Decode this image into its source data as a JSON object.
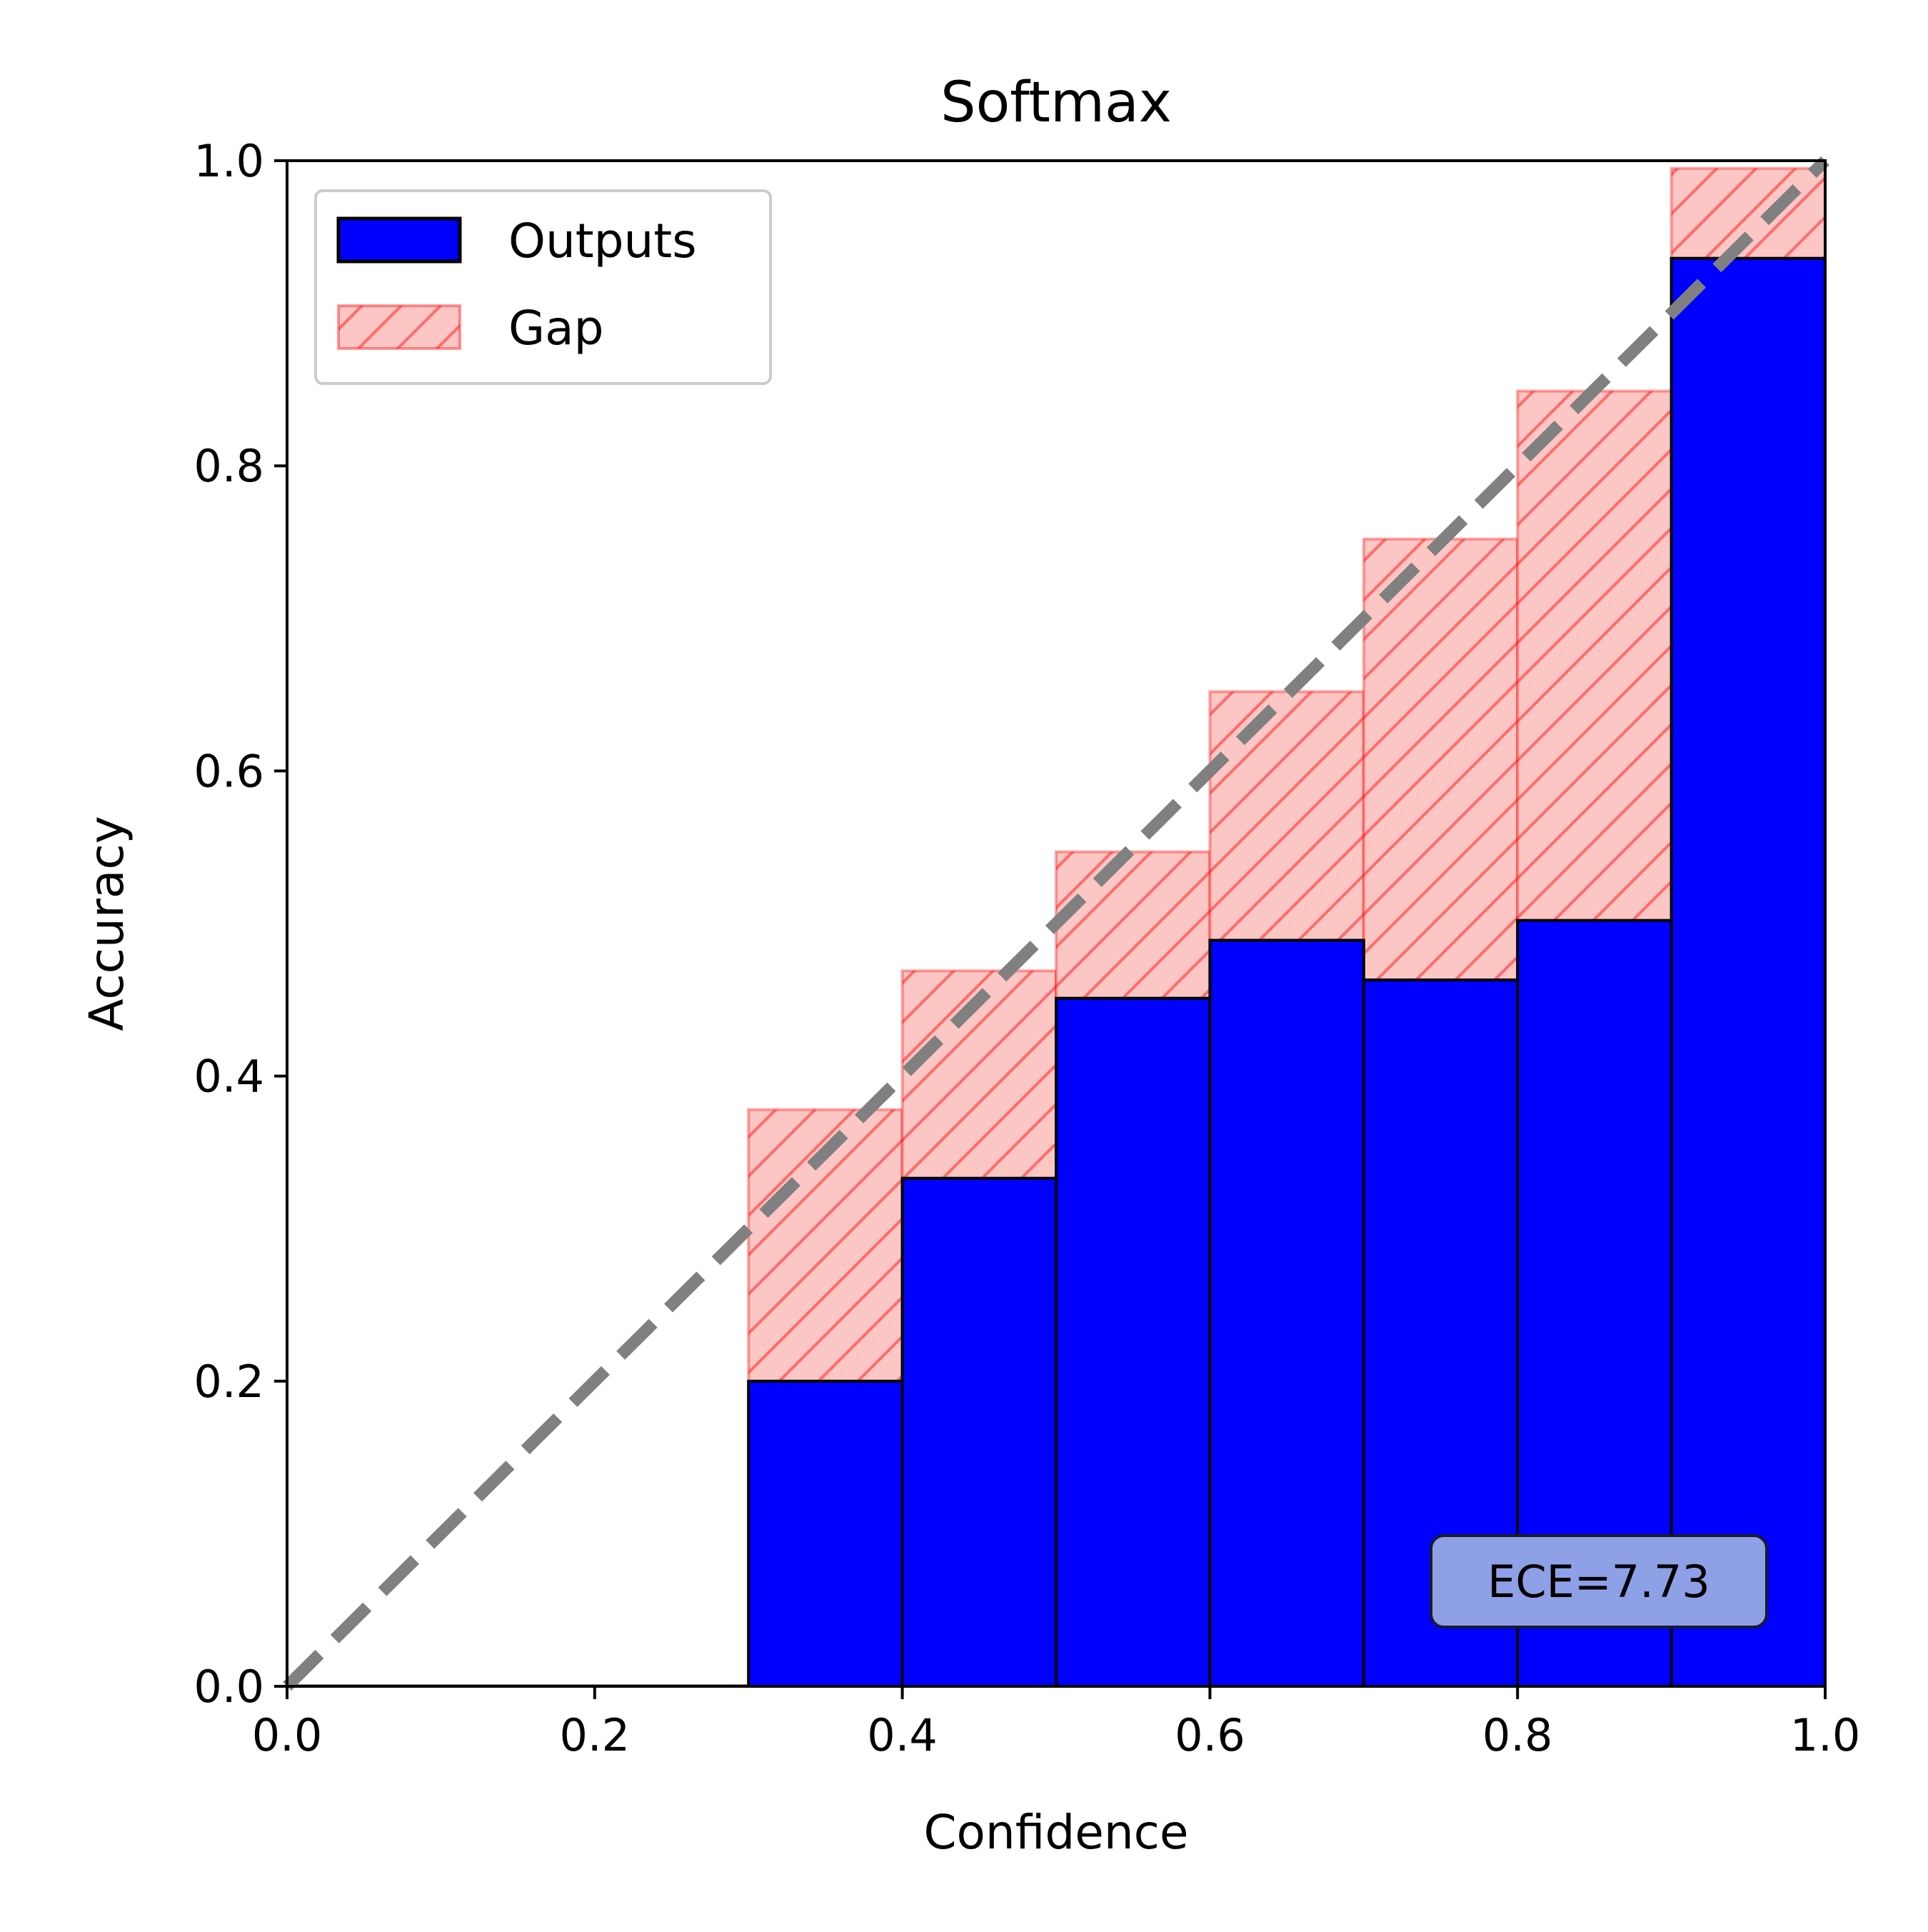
{
  "chart_data": {
    "type": "bar",
    "title": "Softmax",
    "xlabel": "Confidence",
    "ylabel": "Accuracy",
    "xlim": [
      0,
      1
    ],
    "ylim": [
      0,
      1
    ],
    "bin_edges": [
      0.0,
      0.1,
      0.2,
      0.3,
      0.4,
      0.5,
      0.6,
      0.7,
      0.8,
      0.9,
      1.0
    ],
    "x_ticks": [
      "0.0",
      "0.2",
      "0.4",
      "0.6",
      "0.8",
      "1.0"
    ],
    "y_ticks": [
      "0.0",
      "0.2",
      "0.4",
      "0.6",
      "0.8",
      "1.0"
    ],
    "series": [
      {
        "name": "Outputs",
        "values": [
          0.0,
          0.0,
          0.0,
          0.2,
          0.333,
          0.451,
          0.489,
          0.463,
          0.502,
          0.936
        ]
      },
      {
        "name": "Gap",
        "bottom": [
          0.0,
          0.0,
          0.0,
          0.2,
          0.333,
          0.451,
          0.489,
          0.463,
          0.502,
          0.936
        ],
        "top": [
          0.0,
          0.0,
          0.0,
          0.378,
          0.469,
          0.547,
          0.652,
          0.752,
          0.849,
          0.995
        ]
      }
    ],
    "reference_line": {
      "from": [
        0,
        0
      ],
      "to": [
        1,
        1
      ],
      "style": "dashed",
      "color": "#808080"
    },
    "annotation": "ECE=7.73",
    "legend_position": "top-left",
    "grid": false,
    "colors": {
      "outputs": "#0000ff",
      "gap_fill": "#fcc6c4",
      "gap_edge": "#ff0000",
      "reference": "#808080",
      "ece_box": "#8ea0e6"
    }
  }
}
